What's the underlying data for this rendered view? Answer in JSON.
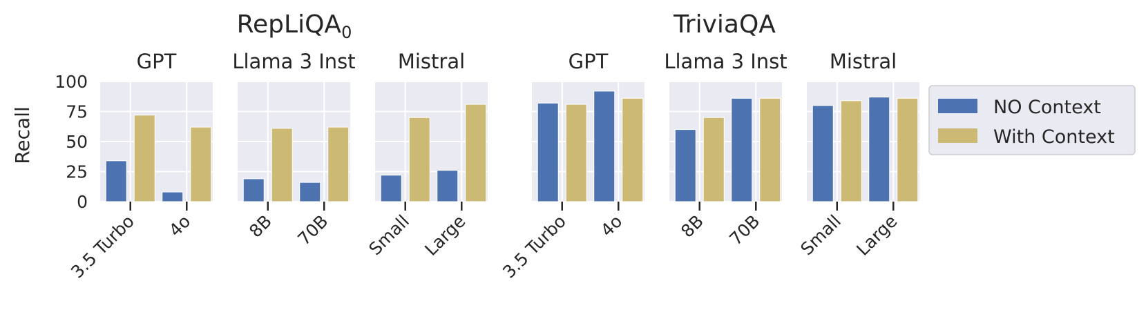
{
  "chart_data": {
    "type": "bar",
    "ylabel": "Recall",
    "ylim": [
      0,
      100
    ],
    "yticks": [
      0,
      25,
      50,
      75,
      100
    ],
    "grid": true,
    "legend_placement": "right",
    "legend": [
      {
        "name": "NO Context",
        "color": "#4c72b0"
      },
      {
        "name": "With Context",
        "color": "#ccb974"
      }
    ],
    "groups": [
      {
        "title": "RepLiQA",
        "title_subscript": "0",
        "panels": [
          {
            "title": "GPT",
            "categories": [
              "3.5 Turbo",
              "4o"
            ],
            "series": [
              {
                "name": "NO Context",
                "values": [
                  34,
                  8
                ]
              },
              {
                "name": "With Context",
                "values": [
                  72,
                  62
                ]
              }
            ]
          },
          {
            "title": "Llama 3 Inst",
            "categories": [
              "8B",
              "70B"
            ],
            "series": [
              {
                "name": "NO Context",
                "values": [
                  19,
                  16
                ]
              },
              {
                "name": "With Context",
                "values": [
                  61,
                  62
                ]
              }
            ]
          },
          {
            "title": "Mistral",
            "categories": [
              "Small",
              "Large"
            ],
            "series": [
              {
                "name": "NO Context",
                "values": [
                  22,
                  26
                ]
              },
              {
                "name": "With Context",
                "values": [
                  70,
                  81
                ]
              }
            ]
          }
        ]
      },
      {
        "title": "TriviaQA",
        "title_subscript": "",
        "panels": [
          {
            "title": "GPT",
            "categories": [
              "3.5 Turbo",
              "4o"
            ],
            "series": [
              {
                "name": "NO Context",
                "values": [
                  82,
                  92
                ]
              },
              {
                "name": "With Context",
                "values": [
                  81,
                  86
                ]
              }
            ]
          },
          {
            "title": "Llama 3 Inst",
            "categories": [
              "8B",
              "70B"
            ],
            "series": [
              {
                "name": "NO Context",
                "values": [
                  60,
                  86
                ]
              },
              {
                "name": "With Context",
                "values": [
                  70,
                  86
                ]
              }
            ]
          },
          {
            "title": "Mistral",
            "categories": [
              "Small",
              "Large"
            ],
            "series": [
              {
                "name": "NO Context",
                "values": [
                  80,
                  87
                ]
              },
              {
                "name": "With Context",
                "values": [
                  84,
                  86
                ]
              }
            ]
          }
        ]
      }
    ]
  }
}
